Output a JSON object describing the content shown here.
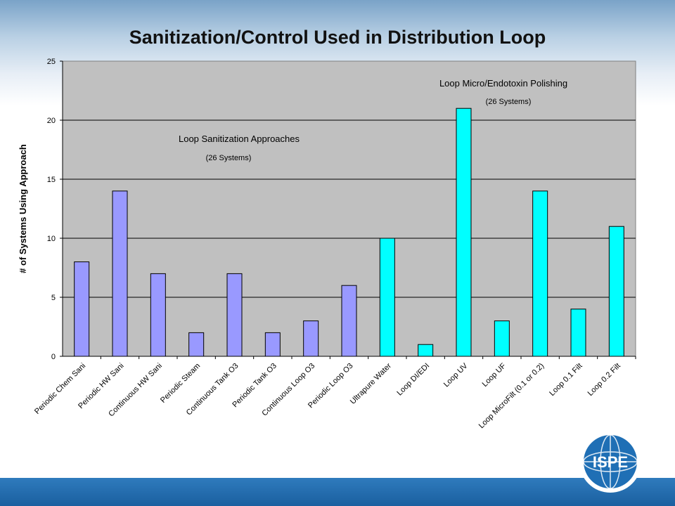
{
  "title": "Sanitization/Control Used in Distribution Loop",
  "logo_text": "ISPE",
  "colors": {
    "series_a": "#9999ff",
    "series_b": "#00ffff",
    "plot_bg": "#c0c0c0"
  },
  "chart_data": {
    "type": "bar",
    "title": "Sanitization/Control Used in Distribution Loop",
    "xlabel": "",
    "ylabel": "# of Systems Using Approach",
    "ylim": [
      0,
      25
    ],
    "yticks": [
      0,
      5,
      10,
      15,
      20,
      25
    ],
    "grid": true,
    "categories": [
      "Periodic Chem Sani",
      "Periodic HW Sani",
      "Continuous HW Sani",
      "Periodic Steam",
      "Continuous Tank O3",
      "Periodic Tank O3",
      "Continuous Loop O3",
      "Periodic Loop O3",
      "Ultrapure Water",
      "Loop DI/EDI",
      "Loop UV",
      "Loop UF",
      "Loop MicroFilt (0.1 or 0.2)",
      "Loop 0.1 Filt",
      "Loop 0.2 Filt"
    ],
    "values": [
      8,
      14,
      7,
      2,
      7,
      2,
      3,
      6,
      10,
      1,
      21,
      3,
      14,
      4,
      11
    ],
    "bar_colors": [
      "#9999ff",
      "#9999ff",
      "#9999ff",
      "#9999ff",
      "#9999ff",
      "#9999ff",
      "#9999ff",
      "#9999ff",
      "#00ffff",
      "#00ffff",
      "#00ffff",
      "#00ffff",
      "#00ffff",
      "#00ffff",
      "#00ffff"
    ],
    "annotations": [
      {
        "text": "Loop Sanitization Approaches",
        "sub": "(26 Systems)"
      },
      {
        "text": "Loop Micro/Endotoxin Polishing",
        "sub": "(26 Systems)"
      }
    ]
  }
}
